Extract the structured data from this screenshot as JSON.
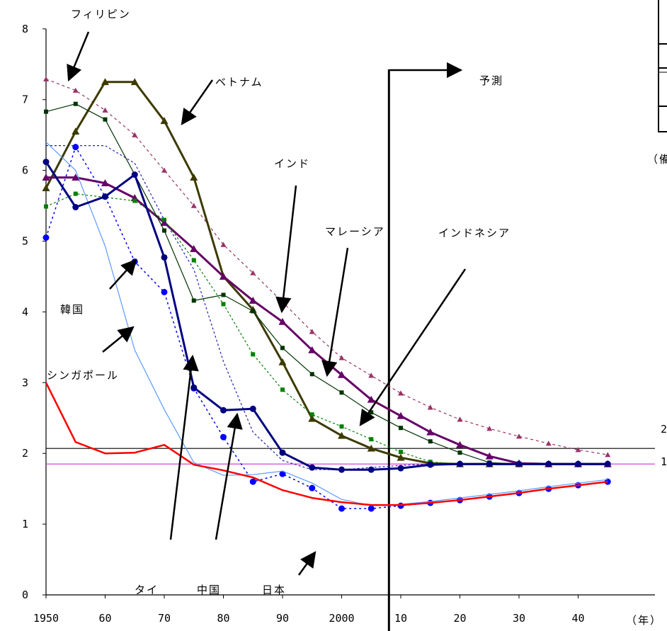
{
  "chart_data": {
    "type": "line",
    "x_tick_labels": [
      "1950",
      "60",
      "70",
      "80",
      "90",
      "2000",
      "10",
      "20",
      "30",
      "40"
    ],
    "x_unit_label": "（年）",
    "y_tick_labels": [
      "0",
      "1",
      "2",
      "3",
      "4",
      "5",
      "6",
      "7",
      "8"
    ],
    "ylim": [
      0,
      8
    ],
    "xlim": [
      1950,
      2048
    ],
    "x": [
      1950,
      1955,
      1960,
      1965,
      1970,
      1975,
      1980,
      1985,
      1990,
      1995,
      2000,
      2005,
      2010,
      2015,
      2020,
      2025,
      2030,
      2035,
      2040,
      2045
    ],
    "forecast_label": "予測",
    "forecast_x": 2008,
    "reference_lines": [
      {
        "y": 2.07,
        "color": "#000000",
        "edge_label": "2"
      },
      {
        "y": 1.85,
        "color": "#cc33cc",
        "edge_label": "1"
      }
    ],
    "legend_box_visible": true,
    "side_note": "（備",
    "series": [
      {
        "name": "フィリピン",
        "color": "#993366",
        "dash": "4,4",
        "marker": "triangle",
        "width": 1.2,
        "values": [
          7.29,
          7.13,
          6.85,
          6.5,
          6.0,
          5.5,
          4.95,
          4.55,
          4.14,
          3.72,
          3.35,
          3.1,
          2.85,
          2.65,
          2.48,
          2.35,
          2.24,
          2.14,
          2.05,
          1.98
        ]
      },
      {
        "name": "ベトナム",
        "color": "#3d3a00",
        "dash": "",
        "marker": "triangle",
        "width": 3,
        "values": [
          5.75,
          6.55,
          7.25,
          7.25,
          6.7,
          5.9,
          4.5,
          4.03,
          3.29,
          2.49,
          2.25,
          2.07,
          1.94,
          1.86,
          1.85,
          1.85,
          1.85,
          1.85,
          1.85,
          1.85
        ]
      },
      {
        "name": "インド",
        "color": "#660066",
        "dash": "",
        "marker": "triangle",
        "width": 3,
        "values": [
          5.9,
          5.9,
          5.82,
          5.61,
          5.26,
          4.89,
          4.5,
          4.16,
          3.86,
          3.46,
          3.11,
          2.76,
          2.53,
          2.3,
          2.12,
          1.96,
          1.86,
          1.85,
          1.85,
          1.85
        ]
      },
      {
        "name": "マレーシア",
        "color": "#003300",
        "dash": "",
        "marker": "square",
        "width": 1.2,
        "values": [
          6.83,
          6.94,
          6.72,
          5.94,
          5.15,
          4.16,
          4.24,
          4.01,
          3.49,
          3.12,
          2.86,
          2.58,
          2.36,
          2.17,
          2.01,
          1.87,
          1.85,
          1.85,
          1.85,
          1.85
        ]
      },
      {
        "name": "インドネシア",
        "color": "#008000",
        "dash": "3,3",
        "marker": "square",
        "width": 1.2,
        "values": [
          5.49,
          5.67,
          5.62,
          5.57,
          5.3,
          4.73,
          4.11,
          3.4,
          2.9,
          2.55,
          2.38,
          2.2,
          2.02,
          1.88,
          1.85,
          1.85,
          1.85,
          1.85,
          1.85,
          1.85
        ]
      },
      {
        "name": "韓国",
        "color": "#0000ff",
        "dash": "3,4",
        "marker": "circle",
        "width": 1.5,
        "values": [
          5.05,
          6.33,
          5.63,
          4.71,
          4.28,
          2.92,
          2.23,
          1.6,
          1.71,
          1.51,
          1.22,
          1.22,
          1.26,
          1.3,
          1.34,
          1.39,
          1.44,
          1.5,
          1.55,
          1.6
        ]
      },
      {
        "name": "シンガポール",
        "color": "#5b9bff",
        "dash": "",
        "marker": "none",
        "width": 1.2,
        "values": [
          6.4,
          6.0,
          4.93,
          3.46,
          2.62,
          1.87,
          1.69,
          1.7,
          1.75,
          1.58,
          1.35,
          1.26,
          1.28,
          1.32,
          1.37,
          1.42,
          1.47,
          1.53,
          1.58,
          1.63
        ]
      },
      {
        "name": "タイ",
        "color": "#2222aa",
        "dash": "3,3",
        "marker": "none",
        "width": 1.2,
        "values": [
          6.35,
          6.35,
          6.35,
          6.1,
          5.3,
          4.6,
          3.3,
          2.3,
          1.9,
          1.77,
          1.77,
          1.8,
          1.83,
          1.85,
          1.85,
          1.85,
          1.85,
          1.85,
          1.85,
          1.85
        ]
      },
      {
        "name": "中国",
        "color": "#000080",
        "dash": "",
        "marker": "circle",
        "width": 3,
        "values": [
          6.12,
          5.48,
          5.63,
          5.94,
          4.77,
          2.93,
          2.61,
          2.63,
          2.01,
          1.8,
          1.77,
          1.77,
          1.79,
          1.84,
          1.85,
          1.85,
          1.85,
          1.85,
          1.85,
          1.85
        ]
      },
      {
        "name": "日本",
        "color": "#ff0000",
        "dash": "",
        "marker": "none",
        "width": 2.5,
        "values": [
          3.0,
          2.16,
          2.0,
          2.01,
          2.12,
          1.84,
          1.76,
          1.66,
          1.48,
          1.37,
          1.31,
          1.27,
          1.27,
          1.3,
          1.34,
          1.39,
          1.44,
          1.5,
          1.55,
          1.6
        ]
      }
    ],
    "annotations": [
      {
        "text": "フィリピン",
        "key": "philippines"
      },
      {
        "text": "ベトナム",
        "key": "vietnam"
      },
      {
        "text": "インド",
        "key": "india"
      },
      {
        "text": "マレーシア",
        "key": "malaysia"
      },
      {
        "text": "インドネシア",
        "key": "indonesia"
      },
      {
        "text": "韓国",
        "key": "korea"
      },
      {
        "text": "シンガポール",
        "key": "singapore"
      },
      {
        "text": "タイ",
        "key": "thailand"
      },
      {
        "text": "中国",
        "key": "china"
      },
      {
        "text": "日本",
        "key": "japan"
      }
    ]
  }
}
